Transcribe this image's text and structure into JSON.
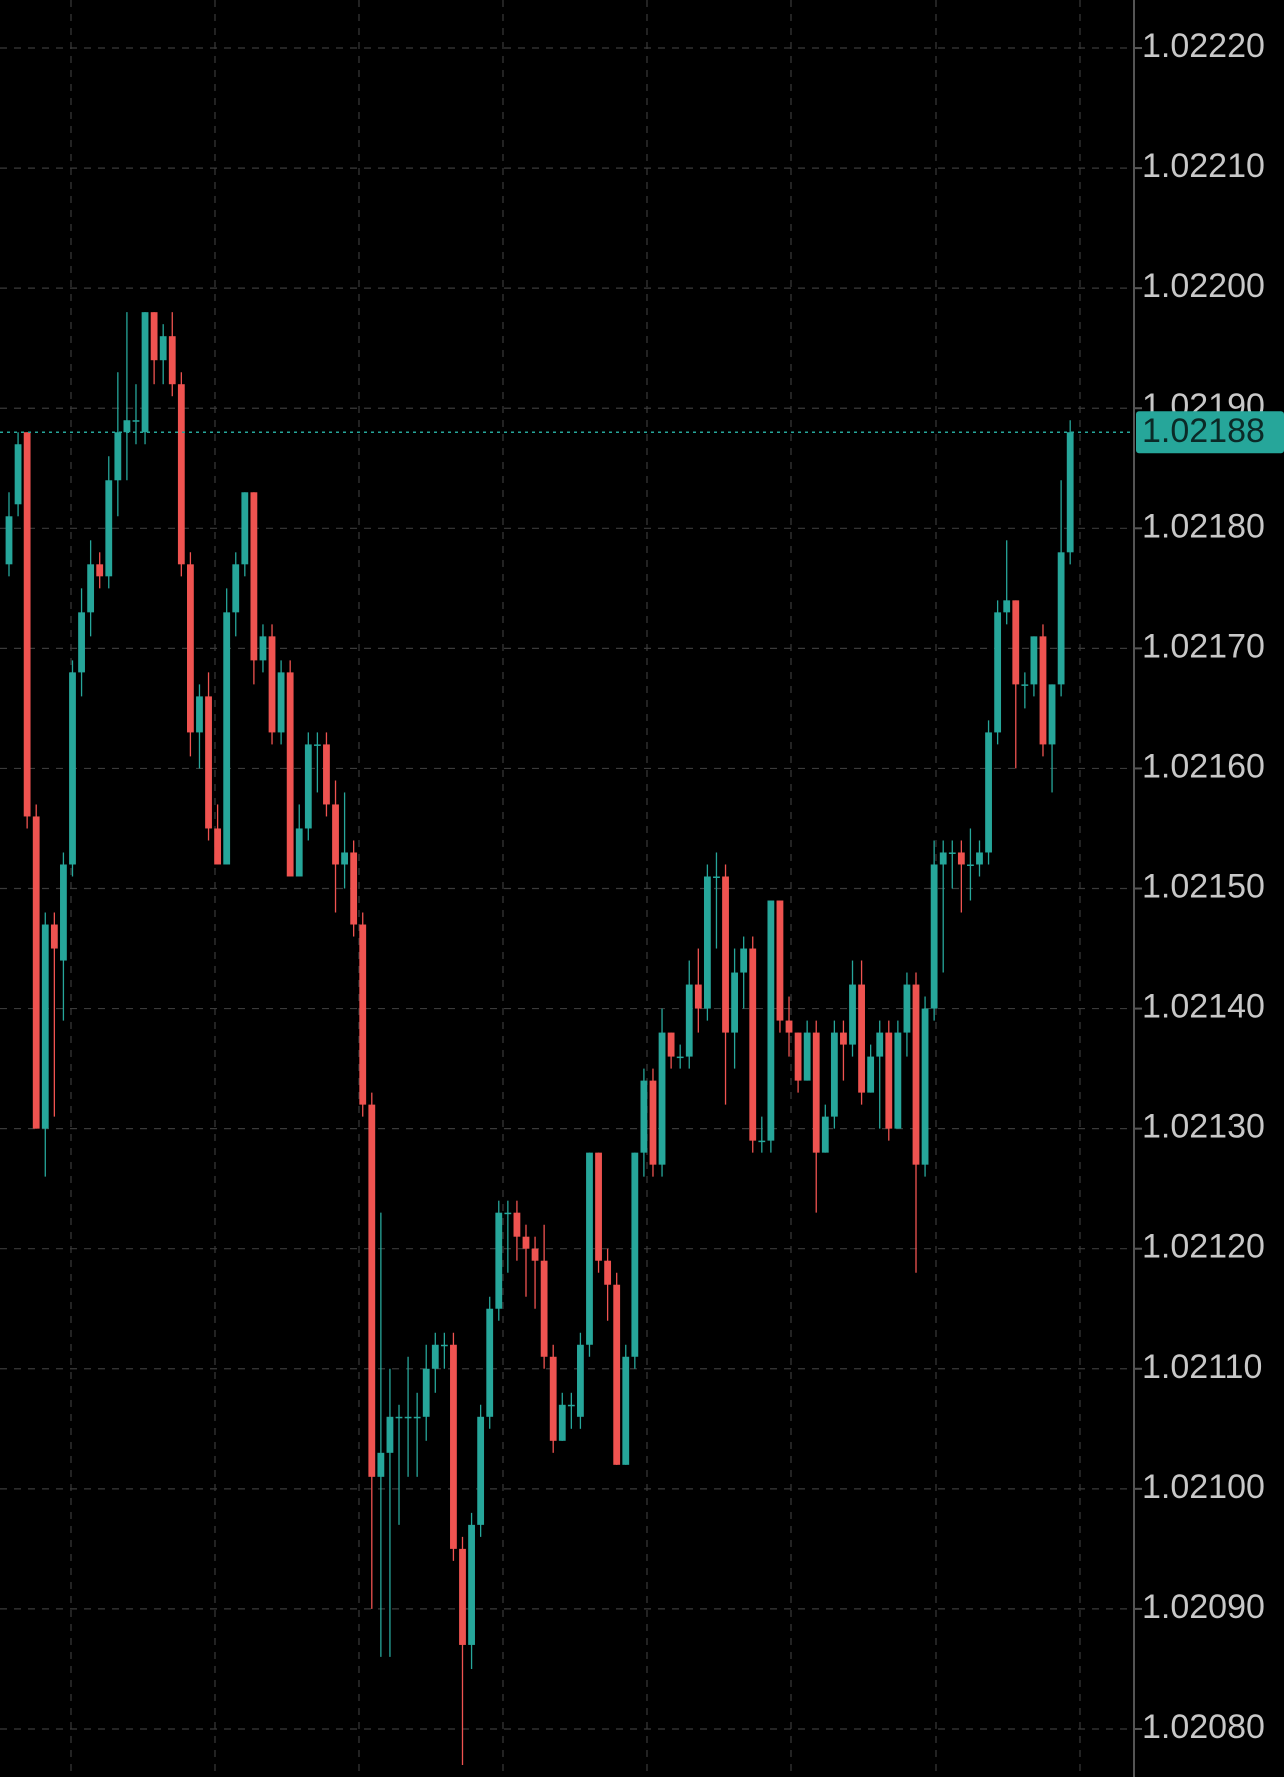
{
  "chart_data": {
    "type": "candlestick",
    "up_color": "#26a69a",
    "down_color": "#ef5350",
    "grid": true,
    "last_price": 1.02188,
    "last_price_label": "1.02188",
    "ylim": [
      1.02076,
      1.02224
    ],
    "yticks": [
      {
        "value": 1.0208,
        "label": "1.02080"
      },
      {
        "value": 1.0209,
        "label": "1.02090"
      },
      {
        "value": 1.021,
        "label": "1.02100"
      },
      {
        "value": 1.0211,
        "label": "1.02110"
      },
      {
        "value": 1.0212,
        "label": "1.02120"
      },
      {
        "value": 1.0213,
        "label": "1.02130"
      },
      {
        "value": 1.0214,
        "label": "1.02140"
      },
      {
        "value": 1.0215,
        "label": "1.02150"
      },
      {
        "value": 1.0216,
        "label": "1.02160"
      },
      {
        "value": 1.0217,
        "label": "1.02170"
      },
      {
        "value": 1.0218,
        "label": "1.02180"
      },
      {
        "value": 1.0219,
        "label": "1.02190"
      },
      {
        "value": 1.022,
        "label": "1.02200"
      },
      {
        "value": 1.0221,
        "label": "1.02210"
      },
      {
        "value": 1.0222,
        "label": "1.02220"
      }
    ],
    "open": [
      1.02177,
      1.02182,
      1.02188,
      1.02156,
      1.0213,
      1.02147,
      1.02144,
      1.02152,
      1.02168,
      1.02173,
      1.02177,
      1.02176,
      1.02184,
      1.02188,
      1.02189,
      1.02188,
      1.02198,
      1.02194,
      1.02196,
      1.02192,
      1.02177,
      1.02163,
      1.02166,
      1.02155,
      1.02152,
      1.02173,
      1.02177,
      1.02183,
      1.02169,
      1.02171,
      1.02163,
      1.02168,
      1.02151,
      1.02155,
      1.02162,
      1.02162,
      1.02157,
      1.02152,
      1.02153,
      1.02147,
      1.02132,
      1.02101,
      1.02103,
      1.02106,
      1.02106,
      1.02106,
      1.02106,
      1.0211,
      1.02112,
      1.02112,
      1.02095,
      1.02087,
      1.02097,
      1.02106,
      1.02115,
      1.02123,
      1.02123,
      1.02121,
      1.0212,
      1.02119,
      1.02111,
      1.02104,
      1.02107,
      1.02106,
      1.02112,
      1.02128,
      1.02119,
      1.02117,
      1.02102,
      1.02111,
      1.02128,
      1.02134,
      1.02127,
      1.02138,
      1.02136,
      1.02136,
      1.02142,
      1.0214,
      1.02151,
      1.02151,
      1.02138,
      1.02143,
      1.02145,
      1.02129,
      1.02129,
      1.02149,
      1.02139,
      1.02138,
      1.02134,
      1.02138,
      1.02128,
      1.02131,
      1.02138,
      1.02137,
      1.02142,
      1.02133,
      1.02136,
      1.02138,
      1.0213,
      1.02138,
      1.02142,
      1.02127,
      1.0214,
      1.02152,
      1.02153,
      1.02153,
      1.02152,
      1.02152,
      1.02153,
      1.02163,
      1.02173,
      1.02174,
      1.02167,
      1.02167,
      1.02171,
      1.02162,
      1.02167,
      1.02178
    ],
    "high": [
      1.02183,
      1.02188,
      1.02188,
      1.02157,
      1.02148,
      1.02148,
      1.02153,
      1.02169,
      1.02175,
      1.02179,
      1.02178,
      1.02186,
      1.02193,
      1.02198,
      1.02192,
      1.02198,
      1.02198,
      1.02197,
      1.02198,
      1.02193,
      1.02178,
      1.02167,
      1.02168,
      1.02157,
      1.02175,
      1.02178,
      1.02183,
      1.02183,
      1.02172,
      1.02172,
      1.02169,
      1.02169,
      1.02157,
      1.02163,
      1.02163,
      1.02163,
      1.02159,
      1.02158,
      1.02154,
      1.02148,
      1.02133,
      1.02123,
      1.0211,
      1.02107,
      1.02111,
      1.02108,
      1.02112,
      1.02113,
      1.02113,
      1.02113,
      1.02096,
      1.02098,
      1.02107,
      1.02116,
      1.02124,
      1.02124,
      1.02124,
      1.02122,
      1.02121,
      1.02122,
      1.02112,
      1.02108,
      1.02108,
      1.02113,
      1.02128,
      1.02128,
      1.0212,
      1.02118,
      1.02112,
      1.02128,
      1.02135,
      1.02135,
      1.0214,
      1.02138,
      1.02137,
      1.02144,
      1.02145,
      1.02152,
      1.02153,
      1.02152,
      1.02145,
      1.02146,
      1.02146,
      1.02131,
      1.02149,
      1.02149,
      1.02141,
      1.02138,
      1.02139,
      1.02139,
      1.02132,
      1.02139,
      1.02139,
      1.02144,
      1.02144,
      1.02137,
      1.02139,
      1.02139,
      1.02139,
      1.02143,
      1.02143,
      1.02141,
      1.02154,
      1.02154,
      1.02154,
      1.02154,
      1.02155,
      1.02154,
      1.02164,
      1.02174,
      1.02179,
      1.02174,
      1.02168,
      1.02171,
      1.02172,
      1.02167,
      1.02184,
      1.02189
    ],
    "low": [
      1.02176,
      1.02181,
      1.02155,
      1.0213,
      1.02126,
      1.02131,
      1.02139,
      1.02151,
      1.02166,
      1.02171,
      1.02175,
      1.02175,
      1.02181,
      1.02184,
      1.02187,
      1.02187,
      1.02192,
      1.02192,
      1.02191,
      1.02176,
      1.02161,
      1.0216,
      1.02154,
      1.02152,
      1.02152,
      1.02171,
      1.02176,
      1.02167,
      1.02168,
      1.02162,
      1.02162,
      1.02151,
      1.02151,
      1.02154,
      1.02158,
      1.02156,
      1.02148,
      1.0215,
      1.02146,
      1.02131,
      1.0209,
      1.02086,
      1.02086,
      1.02097,
      1.02101,
      1.02101,
      1.02104,
      1.02108,
      1.0211,
      1.02094,
      1.02077,
      1.02085,
      1.02096,
      1.02105,
      1.02114,
      1.02118,
      1.02119,
      1.02116,
      1.02115,
      1.0211,
      1.02103,
      1.02104,
      1.02105,
      1.02105,
      1.02111,
      1.02118,
      1.02114,
      1.02102,
      1.02102,
      1.0211,
      1.02126,
      1.02126,
      1.02126,
      1.02135,
      1.02135,
      1.02135,
      1.02138,
      1.02139,
      1.02145,
      1.02132,
      1.02135,
      1.0214,
      1.02128,
      1.02128,
      1.02128,
      1.02138,
      1.02136,
      1.02133,
      1.02134,
      1.02123,
      1.02128,
      1.0213,
      1.02134,
      1.02136,
      1.02132,
      1.02133,
      1.0213,
      1.02129,
      1.0213,
      1.02136,
      1.02118,
      1.02126,
      1.02139,
      1.02143,
      1.0215,
      1.02148,
      1.02149,
      1.02151,
      1.02152,
      1.02162,
      1.02172,
      1.0216,
      1.02165,
      1.02166,
      1.02161,
      1.02158,
      1.02166,
      1.02177
    ],
    "close": [
      1.02181,
      1.02187,
      1.02156,
      1.0213,
      1.02147,
      1.02145,
      1.02152,
      1.02168,
      1.02173,
      1.02177,
      1.02176,
      1.02184,
      1.02188,
      1.02189,
      1.02189,
      1.02198,
      1.02194,
      1.02196,
      1.02192,
      1.02177,
      1.02163,
      1.02166,
      1.02155,
      1.02152,
      1.02173,
      1.02177,
      1.02183,
      1.02169,
      1.02171,
      1.02163,
      1.02168,
      1.02151,
      1.02155,
      1.02162,
      1.02162,
      1.02157,
      1.02152,
      1.02153,
      1.02147,
      1.02132,
      1.02101,
      1.02103,
      1.02106,
      1.02106,
      1.02106,
      1.02106,
      1.0211,
      1.02112,
      1.02112,
      1.02095,
      1.02087,
      1.02097,
      1.02106,
      1.02115,
      1.02123,
      1.02123,
      1.02121,
      1.0212,
      1.02119,
      1.02111,
      1.02104,
      1.02107,
      1.02107,
      1.02112,
      1.02128,
      1.02119,
      1.02117,
      1.02102,
      1.02111,
      1.02128,
      1.02134,
      1.02127,
      1.02138,
      1.02136,
      1.02136,
      1.02142,
      1.0214,
      1.02151,
      1.02151,
      1.02138,
      1.02143,
      1.02145,
      1.02129,
      1.02129,
      1.02149,
      1.02139,
      1.02138,
      1.02134,
      1.02138,
      1.02128,
      1.02131,
      1.02138,
      1.02137,
      1.02142,
      1.02133,
      1.02136,
      1.02138,
      1.0213,
      1.02138,
      1.02142,
      1.02127,
      1.0214,
      1.02152,
      1.02153,
      1.02153,
      1.02152,
      1.02152,
      1.02153,
      1.02163,
      1.02173,
      1.02174,
      1.02167,
      1.02167,
      1.02171,
      1.02162,
      1.02167,
      1.02178,
      1.02188
    ]
  }
}
